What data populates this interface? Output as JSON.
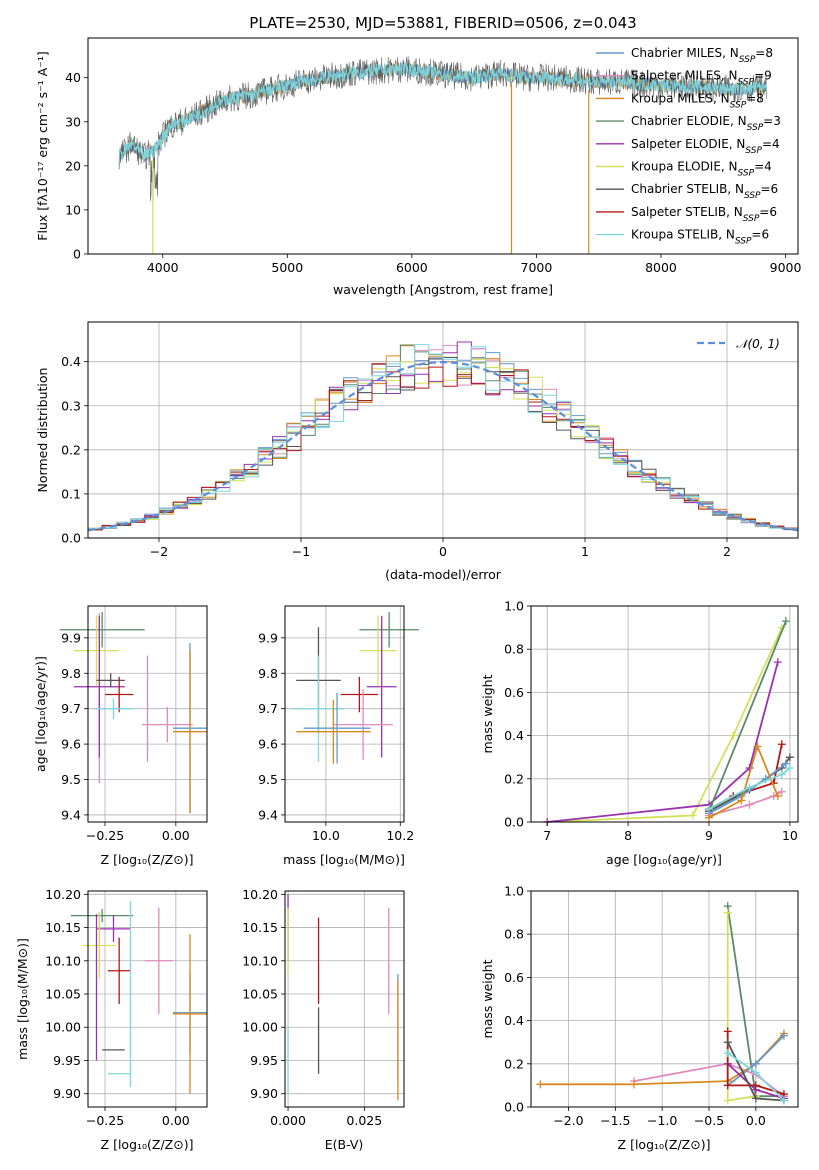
{
  "chart_data": [
    {
      "id": "spectrum",
      "type": "line",
      "title": "PLATE=2530, MJD=53881, FIBERID=0506, z=0.043",
      "xlabel": "wavelength [Angstrom, rest frame]",
      "ylabel": "Flux [fλ10⁻¹⁷ erg cm⁻² s⁻¹ A⁻¹]",
      "xlim": [
        3400,
        9100
      ],
      "ylim": [
        0,
        49
      ],
      "xticks": [
        4000,
        5000,
        6000,
        7000,
        8000,
        9000
      ],
      "yticks": [
        0,
        10,
        20,
        30,
        40
      ],
      "grid": false,
      "legend_position": "top-right",
      "legend": [
        {
          "label": "Chabrier MILES, N",
          "sub": "SSP",
          "tail": "=8",
          "color": "#6699cc"
        },
        {
          "label": "Salpeter MILES, N",
          "sub": "SSP",
          "tail": "=9",
          "color": "#e08bbd"
        },
        {
          "label": "Kroupa MILES, N",
          "sub": "SSP",
          "tail": "=8",
          "color": "#d98a1f"
        },
        {
          "label": "Chabrier ELODIE, N",
          "sub": "SSP",
          "tail": "=3",
          "color": "#5a8a6a"
        },
        {
          "label": "Salpeter ELODIE, N",
          "sub": "SSP",
          "tail": "=4",
          "color": "#9b30b0"
        },
        {
          "label": "Kroupa ELODIE, N",
          "sub": "SSP",
          "tail": "=4",
          "color": "#d4e05a"
        },
        {
          "label": "Chabrier STELIB, N",
          "sub": "SSP",
          "tail": "=6",
          "color": "#555555"
        },
        {
          "label": "Salpeter STELIB, N",
          "sub": "SSP",
          "tail": "=6",
          "color": "#b01818"
        },
        {
          "label": "Kroupa STELIB, N",
          "sub": "SSP",
          "tail": "=6",
          "color": "#7fd8dc"
        }
      ],
      "continuum_points": [
        [
          3650,
          22
        ],
        [
          3750,
          25
        ],
        [
          3850,
          22
        ],
        [
          3950,
          24
        ],
        [
          4050,
          29
        ],
        [
          4150,
          30
        ],
        [
          4300,
          32
        ],
        [
          4500,
          35
        ],
        [
          4700,
          36
        ],
        [
          4900,
          37.5
        ],
        [
          5100,
          39
        ],
        [
          5300,
          40
        ],
        [
          5500,
          41
        ],
        [
          5700,
          41.5
        ],
        [
          5900,
          42
        ],
        [
          6100,
          41.5
        ],
        [
          6300,
          40.5
        ],
        [
          6500,
          40
        ],
        [
          6700,
          41
        ],
        [
          6900,
          40
        ],
        [
          7100,
          40
        ],
        [
          7300,
          39.5
        ],
        [
          7500,
          39
        ],
        [
          7700,
          39
        ],
        [
          7900,
          38.5
        ],
        [
          8100,
          38
        ],
        [
          8300,
          38
        ],
        [
          8500,
          37.5
        ],
        [
          8700,
          37.5
        ],
        [
          8850,
          38
        ]
      ],
      "drops_to_zero": [
        3920,
        6800,
        7420
      ]
    },
    {
      "id": "residuals",
      "type": "line",
      "title": "",
      "xlabel": "(data-model)/error",
      "ylabel": "Normed distribution",
      "xlim": [
        -2.5,
        2.5
      ],
      "ylim": [
        0,
        0.49
      ],
      "xticks": [
        -2,
        -1,
        0,
        1,
        2
      ],
      "yticks": [
        0.0,
        0.1,
        0.2,
        0.3,
        0.4
      ],
      "grid": true,
      "legend_position": "top-right",
      "legend": [
        {
          "label": "𝒩(0, 1)",
          "color": "#5b8fdf",
          "style": "dashed"
        }
      ],
      "histogram_bin_width": 0.1,
      "histogram_colors": [
        "#6699cc",
        "#e08bbd",
        "#d98a1f",
        "#5a8a6a",
        "#9b30b0",
        "#d4e05a",
        "#555555",
        "#b01818",
        "#7fd8dc"
      ]
    },
    {
      "id": "age-vs-Z",
      "type": "scatter",
      "xlabel": "Z [log₁₀(Z/Z⊙)]",
      "ylabel": "age  [log₁₀(age/yr)]",
      "xlim": [
        -0.31,
        0.11
      ],
      "ylim": [
        9.38,
        9.99
      ],
      "xticks": [
        -0.25,
        0.0
      ],
      "yticks": [
        9.4,
        9.5,
        9.6,
        9.7,
        9.8,
        9.9
      ],
      "grid": true,
      "points": [
        {
          "x": -0.27,
          "y": 9.73,
          "xerr": 0.0,
          "yerr": 0.24,
          "color": "#e08bbd"
        },
        {
          "x": -0.26,
          "y": 9.923,
          "xerr": 0.15,
          "yerr": 0.05,
          "color": "#5a8a6a"
        },
        {
          "x": -0.28,
          "y": 9.864,
          "xerr": 0.08,
          "yerr": 0.1,
          "color": "#d4e05a"
        },
        {
          "x": -0.27,
          "y": 9.762,
          "xerr": 0.09,
          "yerr": 0.2,
          "color": "#9b30b0"
        },
        {
          "x": -0.23,
          "y": 9.78,
          "xerr": 0.05,
          "yerr": 0.02,
          "color": "#555555"
        },
        {
          "x": -0.2,
          "y": 9.74,
          "xerr": 0.05,
          "yerr": 0.05,
          "color": "#b01818"
        },
        {
          "x": -0.22,
          "y": 9.7,
          "xerr": 0.07,
          "yerr": 0.03,
          "color": "#7fd8dc"
        },
        {
          "x": -0.1,
          "y": 9.7,
          "xerr": 0.0,
          "yerr": 0.15,
          "color": "#e08bbd"
        },
        {
          "x": -0.03,
          "y": 9.655,
          "xerr": 0.09,
          "yerr": 0.05,
          "color": "#e08bbd"
        },
        {
          "x": 0.05,
          "y": 9.645,
          "xerr": 0.06,
          "yerr": 0.24,
          "color": "#6699cc"
        },
        {
          "x": 0.05,
          "y": 9.635,
          "xerr": 0.06,
          "yerr": 0.23,
          "color": "#d98a1f"
        }
      ]
    },
    {
      "id": "age-vs-mass",
      "type": "scatter",
      "xlabel": "mass [log₁₀(M/M⊙)]",
      "ylabel": "",
      "xlim": [
        9.89,
        10.21
      ],
      "ylim": [
        9.38,
        9.99
      ],
      "xticks": [
        10.0,
        10.2
      ],
      "yticks": [
        9.4,
        9.5,
        9.6,
        9.7,
        9.8,
        9.9
      ],
      "grid": true,
      "points": [
        {
          "x": 10.17,
          "y": 9.923,
          "xerr": 0.08,
          "yerr": 0.05,
          "color": "#5a8a6a"
        },
        {
          "x": 10.14,
          "y": 9.864,
          "xerr": 0.05,
          "yerr": 0.1,
          "color": "#d4e05a"
        },
        {
          "x": 10.15,
          "y": 9.762,
          "xerr": 0.04,
          "yerr": 0.2,
          "color": "#9b30b0"
        },
        {
          "x": 9.98,
          "y": 9.78,
          "xerr": 0.06,
          "yerr": 0.15,
          "color": "#555555"
        },
        {
          "x": 10.09,
          "y": 9.74,
          "xerr": 0.05,
          "yerr": 0.05,
          "color": "#b01818"
        },
        {
          "x": 9.98,
          "y": 9.7,
          "xerr": 0.07,
          "yerr": 0.15,
          "color": "#7fd8dc"
        },
        {
          "x": 10.1,
          "y": 9.655,
          "xerr": 0.08,
          "yerr": 0.1,
          "color": "#e08bbd"
        },
        {
          "x": 10.03,
          "y": 9.645,
          "xerr": 0.09,
          "yerr": 0.1,
          "color": "#6699cc"
        },
        {
          "x": 10.02,
          "y": 9.635,
          "xerr": 0.1,
          "yerr": 0.09,
          "color": "#d98a1f"
        }
      ]
    },
    {
      "id": "weight-vs-age",
      "type": "line",
      "xlabel": "age  [log₁₀(age/yr)]",
      "ylabel": "mass weight",
      "xlim": [
        6.8,
        10.1
      ],
      "ylim": [
        0.0,
        1.0
      ],
      "xticks": [
        7,
        8,
        9,
        10
      ],
      "yticks": [
        0.0,
        0.2,
        0.4,
        0.6,
        0.8,
        1.0
      ],
      "grid": true,
      "series": [
        {
          "color": "#d4e05a",
          "points": [
            [
              7.0,
              0.0
            ],
            [
              8.8,
              0.03
            ],
            [
              9.3,
              0.4
            ],
            [
              9.9,
              0.9
            ]
          ]
        },
        {
          "color": "#9b30b0",
          "points": [
            [
              7.0,
              0.0
            ],
            [
              9.0,
              0.08
            ],
            [
              9.5,
              0.25
            ],
            [
              9.85,
              0.74
            ]
          ]
        },
        {
          "color": "#5a8a6a",
          "points": [
            [
              9.0,
              0.05
            ],
            [
              9.95,
              0.93
            ]
          ]
        },
        {
          "color": "#b01818",
          "points": [
            [
              9.0,
              0.06
            ],
            [
              9.3,
              0.12
            ],
            [
              9.8,
              0.18
            ],
            [
              9.9,
              0.36
            ]
          ]
        },
        {
          "color": "#555555",
          "points": [
            [
              9.0,
              0.05
            ],
            [
              9.5,
              0.15
            ],
            [
              9.9,
              0.25
            ],
            [
              10.0,
              0.3
            ]
          ]
        },
        {
          "color": "#6699cc",
          "points": [
            [
              9.0,
              0.04
            ],
            [
              9.4,
              0.12
            ],
            [
              9.7,
              0.2
            ],
            [
              9.95,
              0.27
            ]
          ]
        },
        {
          "color": "#e08bbd",
          "points": [
            [
              9.0,
              0.03
            ],
            [
              9.5,
              0.08
            ],
            [
              9.8,
              0.12
            ],
            [
              9.9,
              0.14
            ]
          ]
        },
        {
          "color": "#d98a1f",
          "points": [
            [
              9.0,
              0.02
            ],
            [
              9.4,
              0.1
            ],
            [
              9.6,
              0.35
            ],
            [
              9.85,
              0.12
            ]
          ]
        },
        {
          "color": "#7fd8dc",
          "points": [
            [
              9.0,
              0.06
            ],
            [
              9.5,
              0.16
            ],
            [
              9.9,
              0.22
            ],
            [
              10.0,
              0.25
            ]
          ]
        }
      ]
    },
    {
      "id": "mass-vs-Z",
      "type": "scatter",
      "xlabel": "Z [log₁₀(Z/Z⊙)]",
      "ylabel": "mass [log₁₀(M/M⊙)]",
      "xlim": [
        -0.31,
        0.11
      ],
      "ylim": [
        9.88,
        10.205
      ],
      "xticks": [
        -0.25,
        0.0
      ],
      "yticks": [
        9.9,
        9.95,
        10.0,
        10.05,
        10.1,
        10.15,
        10.2
      ],
      "grid": true,
      "points": [
        {
          "x": -0.26,
          "y": 10.168,
          "xerr": 0.11,
          "yerr": 0.01,
          "color": "#5a8a6a"
        },
        {
          "x": -0.22,
          "y": 10.148,
          "xerr": 0.06,
          "yerr": 0.02,
          "color": "#9b30b0"
        },
        {
          "x": -0.27,
          "y": 10.123,
          "xerr": 0.06,
          "yerr": 0.05,
          "color": "#d4e05a"
        },
        {
          "x": -0.2,
          "y": 10.085,
          "xerr": 0.04,
          "yerr": 0.05,
          "color": "#b01818"
        },
        {
          "x": -0.22,
          "y": 9.966,
          "xerr": 0.04,
          "yerr": 0.0,
          "color": "#555555"
        },
        {
          "x": -0.2,
          "y": 9.93,
          "xerr": 0.04,
          "yerr": 0.0,
          "color": "#7fd8dc"
        },
        {
          "x": -0.16,
          "y": 10.05,
          "xerr": 0.0,
          "yerr": 0.14,
          "color": "#7fd8dc"
        },
        {
          "x": -0.28,
          "y": 10.06,
          "xerr": 0.0,
          "yerr": 0.11,
          "color": "#9b30b0"
        },
        {
          "x": -0.06,
          "y": 10.1,
          "xerr": 0.05,
          "yerr": 0.08,
          "color": "#e08bbd"
        },
        {
          "x": 0.05,
          "y": 10.022,
          "xerr": 0.06,
          "yerr": 0.06,
          "color": "#6699cc"
        },
        {
          "x": 0.05,
          "y": 10.02,
          "xerr": 0.06,
          "yerr": 0.12,
          "color": "#d98a1f"
        }
      ]
    },
    {
      "id": "mass-vs-EBV",
      "type": "scatter",
      "xlabel": "E(B-V)",
      "ylabel": "",
      "xlim": [
        -0.001,
        0.038
      ],
      "ylim": [
        9.88,
        10.205
      ],
      "xticks": [
        0.0,
        0.025
      ],
      "yticks": [
        9.9,
        9.95,
        10.0,
        10.05,
        10.1,
        10.15,
        10.2
      ],
      "grid": true,
      "points": [
        {
          "x": 0.0,
          "y": 10.15,
          "xerr": 0.0,
          "yerr": 0.05,
          "color": "#9b30b0"
        },
        {
          "x": 0.0,
          "y": 10.13,
          "xerr": 0.0,
          "yerr": 0.05,
          "color": "#d4e05a"
        },
        {
          "x": 0.0,
          "y": 9.95,
          "xerr": 0.0,
          "yerr": 0.05,
          "color": "#7fd8dc"
        },
        {
          "x": 0.01,
          "y": 10.1,
          "xerr": 0.0,
          "yerr": 0.065,
          "color": "#b01818"
        },
        {
          "x": 0.01,
          "y": 9.98,
          "xerr": 0.0,
          "yerr": 0.05,
          "color": "#555555"
        },
        {
          "x": 0.033,
          "y": 10.1,
          "xerr": 0.0,
          "yerr": 0.08,
          "color": "#e08bbd"
        },
        {
          "x": 0.036,
          "y": 10.0,
          "xerr": 0.0,
          "yerr": 0.08,
          "color": "#6699cc"
        },
        {
          "x": 0.036,
          "y": 9.98,
          "xerr": 0.0,
          "yerr": 0.09,
          "color": "#d98a1f"
        }
      ]
    },
    {
      "id": "weight-vs-Z",
      "type": "line",
      "xlabel": "Z [log₁₀(Z/Z⊙)]",
      "ylabel": "mass weight",
      "xlim": [
        -2.4,
        0.45
      ],
      "ylim": [
        0.0,
        1.0
      ],
      "xticks": [
        -2.0,
        -1.5,
        -1.0,
        -0.5,
        0.0
      ],
      "yticks": [
        0.0,
        0.2,
        0.4,
        0.6,
        0.8,
        1.0
      ],
      "grid": true,
      "series": [
        {
          "color": "#5a8a6a",
          "points": [
            [
              -0.3,
              0.93
            ],
            [
              0.0,
              0.05
            ],
            [
              0.3,
              0.05
            ]
          ]
        },
        {
          "color": "#d4e05a",
          "points": [
            [
              -0.3,
              0.9
            ],
            [
              -0.3,
              0.03
            ],
            [
              0.0,
              0.05
            ]
          ]
        },
        {
          "color": "#e08bbd",
          "points": [
            [
              -1.3,
              0.12
            ],
            [
              -0.3,
              0.2
            ],
            [
              0.0,
              0.15
            ],
            [
              0.3,
              0.05
            ]
          ]
        },
        {
          "color": "#d98a1f",
          "points": [
            [
              -2.3,
              0.105
            ],
            [
              -1.3,
              0.105
            ],
            [
              -0.3,
              0.12
            ],
            [
              0.0,
              0.2
            ],
            [
              0.3,
              0.34
            ]
          ]
        },
        {
          "color": "#6699cc",
          "points": [
            [
              -0.3,
              0.1
            ],
            [
              0.0,
              0.2
            ],
            [
              0.3,
              0.33
            ]
          ]
        },
        {
          "color": "#9b30b0",
          "points": [
            [
              -0.3,
              0.2
            ],
            [
              0.0,
              0.08
            ],
            [
              0.3,
              0.04
            ]
          ]
        },
        {
          "color": "#b01818",
          "points": [
            [
              -0.3,
              0.35
            ],
            [
              -0.3,
              0.1
            ],
            [
              0.0,
              0.1
            ],
            [
              0.3,
              0.06
            ]
          ]
        },
        {
          "color": "#555555",
          "points": [
            [
              -0.3,
              0.3
            ],
            [
              0.0,
              0.04
            ],
            [
              0.3,
              0.03
            ]
          ]
        },
        {
          "color": "#7fd8dc",
          "points": [
            [
              -0.3,
              0.25
            ],
            [
              0.0,
              0.16
            ],
            [
              0.3,
              0.03
            ]
          ]
        }
      ]
    }
  ]
}
